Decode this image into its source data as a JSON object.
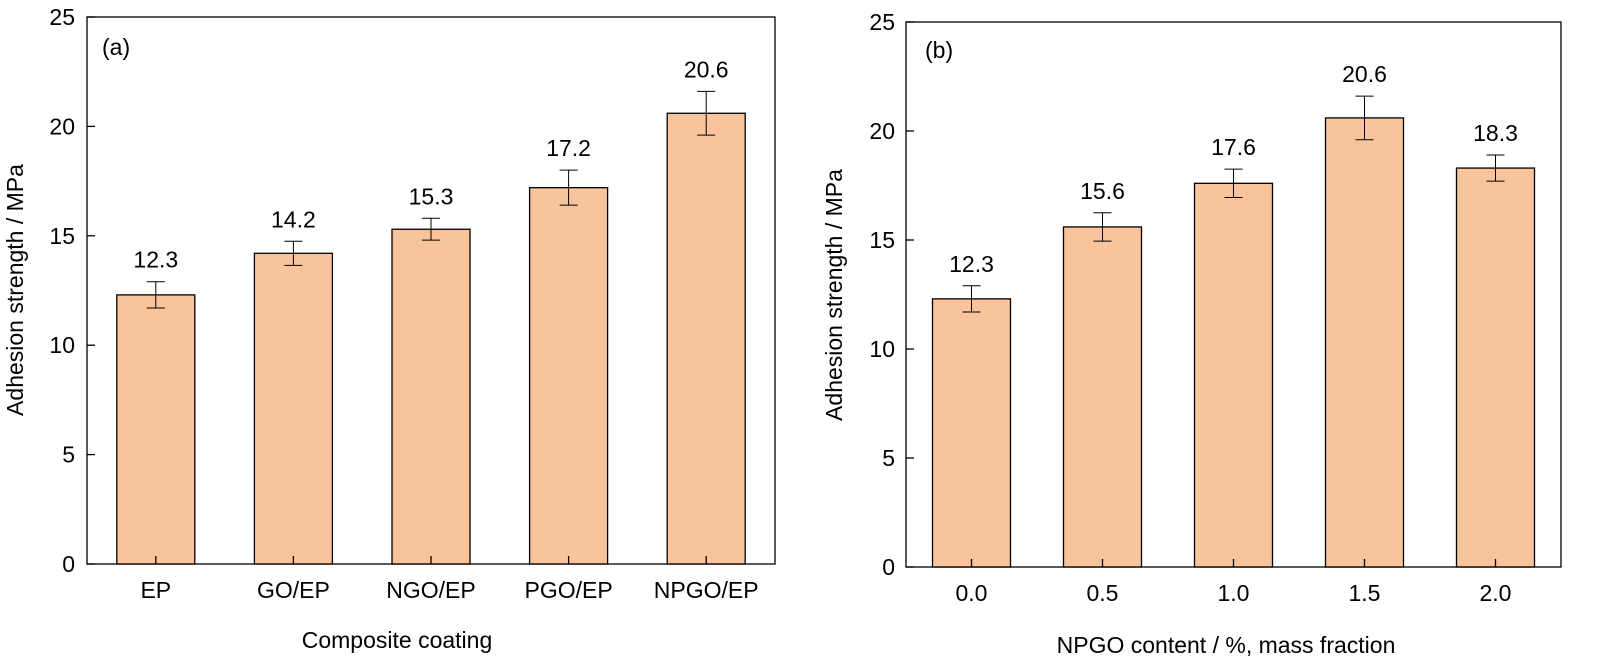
{
  "colors": {
    "bar_fill": "#f9c49b",
    "bar_stroke": "#000000",
    "axis": "#000000"
  },
  "chart_data": [
    {
      "type": "bar",
      "panel_label": "(a)",
      "xlabel": "Composite coating",
      "ylabel": "Adhesion strength / MPa",
      "ylim": [
        0,
        25
      ],
      "yticks": [
        0,
        5,
        10,
        15,
        20,
        25
      ],
      "categories": [
        "EP",
        "GO/EP",
        "NGO/EP",
        "PGO/EP",
        "NPGO/EP"
      ],
      "values": [
        12.3,
        14.2,
        15.3,
        17.2,
        20.6
      ],
      "errors": [
        0.6,
        0.55,
        0.5,
        0.8,
        1.0
      ],
      "data_labels": [
        "12.3",
        "14.2",
        "15.3",
        "17.2",
        "20.6"
      ],
      "grid": false
    },
    {
      "type": "bar",
      "panel_label": "(b)",
      "xlabel": "NPGO content / %, mass fraction",
      "ylabel": "Adhesion strength / MPa",
      "ylim": [
        0,
        25
      ],
      "yticks": [
        0,
        5,
        10,
        15,
        20,
        25
      ],
      "categories": [
        "0.0",
        "0.5",
        "1.0",
        "1.5",
        "2.0"
      ],
      "values": [
        12.3,
        15.6,
        17.6,
        20.6,
        18.3
      ],
      "errors": [
        0.6,
        0.65,
        0.65,
        1.0,
        0.6
      ],
      "data_labels": [
        "12.3",
        "15.6",
        "17.6",
        "20.6",
        "18.3"
      ],
      "grid": false
    }
  ]
}
